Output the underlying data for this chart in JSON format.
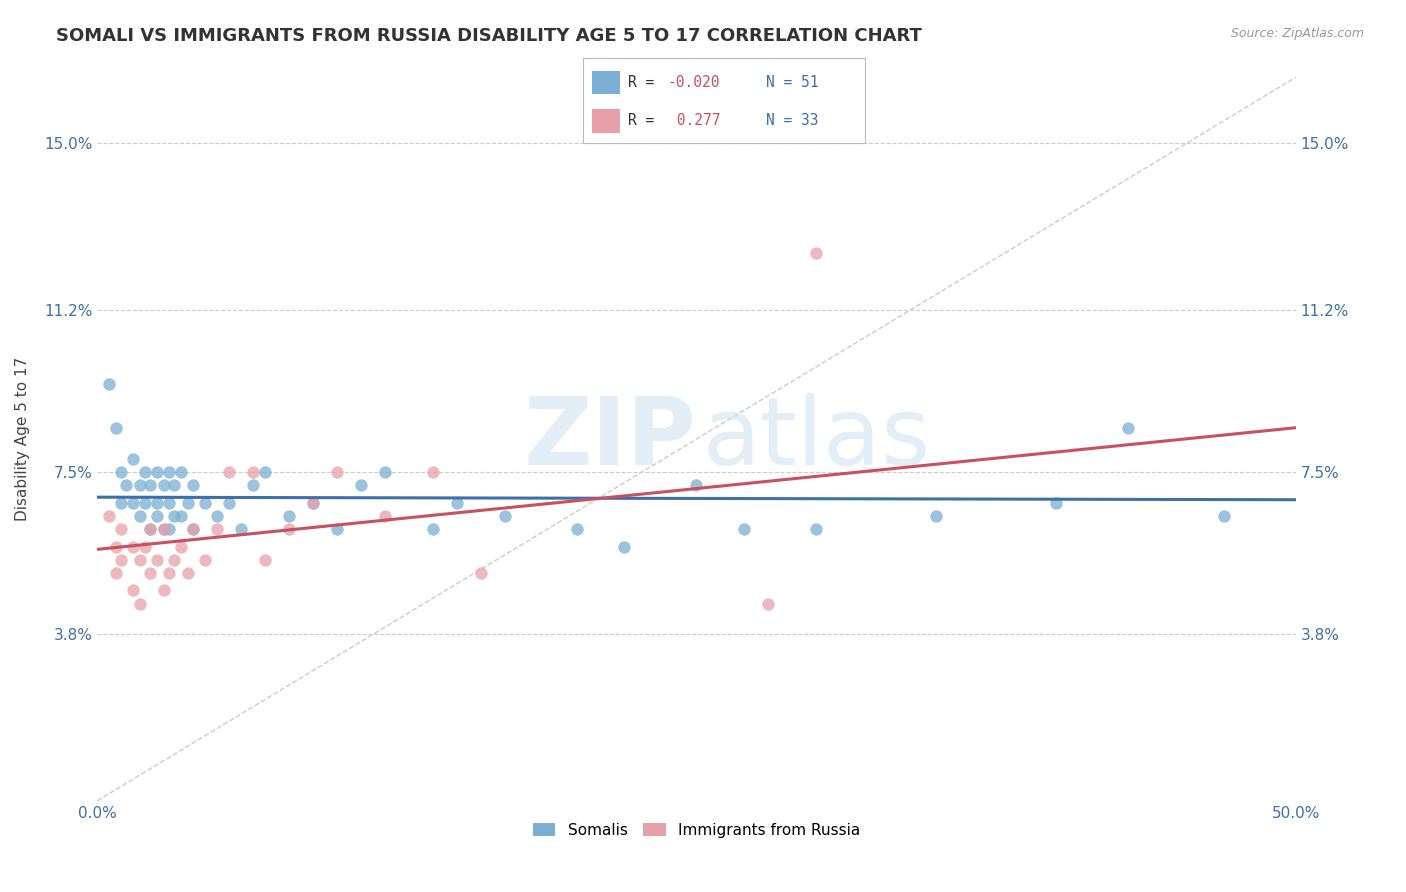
{
  "title": "SOMALI VS IMMIGRANTS FROM RUSSIA DISABILITY AGE 5 TO 17 CORRELATION CHART",
  "source": "Source: ZipAtlas.com",
  "ylabel": "Disability Age 5 to 17",
  "xmin": 0.0,
  "xmax": 0.5,
  "ymin": 0.0,
  "ymax": 0.165,
  "yticks": [
    0.038,
    0.075,
    0.112,
    0.15
  ],
  "ytick_labels": [
    "3.8%",
    "7.5%",
    "11.2%",
    "15.0%"
  ],
  "xtick_labels": [
    "0.0%",
    "50.0%"
  ],
  "watermark_zip": "ZIP",
  "watermark_atlas": "atlas",
  "color_somali": "#7bafd4",
  "color_russia": "#e8a0a8",
  "color_trend_somali": "#3d6fa8",
  "color_trend_russia": "#c85060",
  "color_diagonal": "#cccccc",
  "somali_x": [
    0.005,
    0.008,
    0.01,
    0.01,
    0.012,
    0.015,
    0.015,
    0.018,
    0.018,
    0.02,
    0.02,
    0.022,
    0.022,
    0.025,
    0.025,
    0.025,
    0.028,
    0.028,
    0.03,
    0.03,
    0.03,
    0.032,
    0.032,
    0.035,
    0.035,
    0.038,
    0.04,
    0.04,
    0.045,
    0.05,
    0.055,
    0.06,
    0.065,
    0.07,
    0.08,
    0.09,
    0.1,
    0.11,
    0.12,
    0.14,
    0.15,
    0.17,
    0.2,
    0.22,
    0.25,
    0.27,
    0.3,
    0.35,
    0.4,
    0.43,
    0.47
  ],
  "somali_y": [
    0.095,
    0.085,
    0.075,
    0.068,
    0.072,
    0.078,
    0.068,
    0.072,
    0.065,
    0.075,
    0.068,
    0.072,
    0.062,
    0.075,
    0.068,
    0.065,
    0.072,
    0.062,
    0.075,
    0.068,
    0.062,
    0.072,
    0.065,
    0.075,
    0.065,
    0.068,
    0.072,
    0.062,
    0.068,
    0.065,
    0.068,
    0.062,
    0.072,
    0.075,
    0.065,
    0.068,
    0.062,
    0.072,
    0.075,
    0.062,
    0.068,
    0.065,
    0.062,
    0.058,
    0.072,
    0.062,
    0.062,
    0.065,
    0.068,
    0.085,
    0.065
  ],
  "russia_x": [
    0.005,
    0.008,
    0.008,
    0.01,
    0.01,
    0.015,
    0.015,
    0.018,
    0.018,
    0.02,
    0.022,
    0.022,
    0.025,
    0.028,
    0.028,
    0.03,
    0.032,
    0.035,
    0.038,
    0.04,
    0.045,
    0.05,
    0.055,
    0.065,
    0.07,
    0.08,
    0.09,
    0.1,
    0.12,
    0.14,
    0.16,
    0.28,
    0.3
  ],
  "russia_y": [
    0.065,
    0.058,
    0.052,
    0.062,
    0.055,
    0.058,
    0.048,
    0.055,
    0.045,
    0.058,
    0.052,
    0.062,
    0.055,
    0.062,
    0.048,
    0.052,
    0.055,
    0.058,
    0.052,
    0.062,
    0.055,
    0.062,
    0.075,
    0.075,
    0.055,
    0.062,
    0.068,
    0.075,
    0.065,
    0.075,
    0.052,
    0.045,
    0.125
  ]
}
